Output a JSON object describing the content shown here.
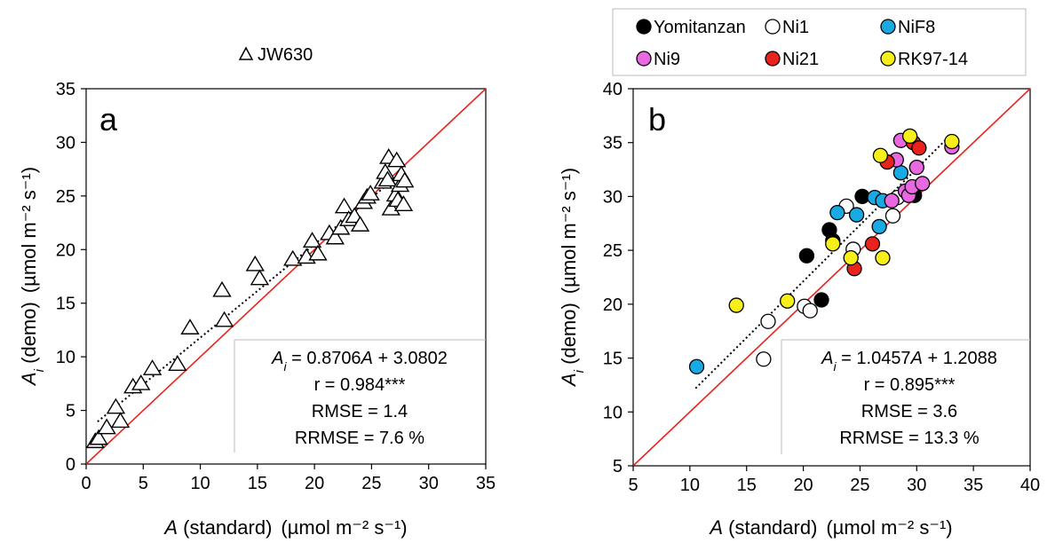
{
  "chart_data": [
    {
      "panel_letter": "a",
      "type": "scatter",
      "legend": [
        {
          "label": "JW630",
          "marker": "triangle",
          "fill": "#ffffff"
        }
      ],
      "xlabel": {
        "italic": "A",
        "text": " (standard)",
        "unit": "(µmol m⁻² s⁻¹)"
      },
      "ylabel": {
        "italic": "A",
        "sub": "i",
        "text": " (demo)",
        "unit": "(µmol m⁻² s⁻¹)"
      },
      "xlim": [
        0,
        35
      ],
      "ylim": [
        0,
        35
      ],
      "xticks": [
        "0",
        "5",
        "10",
        "15",
        "20",
        "25",
        "30",
        "35"
      ],
      "yticks": [
        "0",
        "5",
        "10",
        "15",
        "20",
        "25",
        "30",
        "35"
      ],
      "one_to_one_line": {
        "color": "#e8221c"
      },
      "regression": {
        "slope": 0.8706,
        "intercept": 3.0802,
        "x_range": [
          1,
          27.5
        ]
      },
      "stats": {
        "eq_pre": " = 0.8706",
        "eq_post": " + 3.0802",
        "r": "r = 0.984***",
        "rmse": "RMSE = 1.4",
        "rrmse": "RRMSE = 7.6 %"
      },
      "series": [
        {
          "name": "JW630",
          "marker": "triangle",
          "fill": "#ffffff",
          "stroke": "#000000",
          "points": [
            [
              0.8,
              2.1
            ],
            [
              1.1,
              2.4
            ],
            [
              1.8,
              3.4
            ],
            [
              2.6,
              5.3
            ],
            [
              3.0,
              4.0
            ],
            [
              4.1,
              7.2
            ],
            [
              4.8,
              7.5
            ],
            [
              5.8,
              8.9
            ],
            [
              8.0,
              9.3
            ],
            [
              9.1,
              12.7
            ],
            [
              11.9,
              16.2
            ],
            [
              12.1,
              13.4
            ],
            [
              14.8,
              18.6
            ],
            [
              15.2,
              17.3
            ],
            [
              18.1,
              19.1
            ],
            [
              19.3,
              19.3
            ],
            [
              19.8,
              20.8
            ],
            [
              20.3,
              19.6
            ],
            [
              21.3,
              21.5
            ],
            [
              21.8,
              21.1
            ],
            [
              22.3,
              22.0
            ],
            [
              22.6,
              24.0
            ],
            [
              23.0,
              22.8
            ],
            [
              23.5,
              23.1
            ],
            [
              24.0,
              22.3
            ],
            [
              24.3,
              24.4
            ],
            [
              24.6,
              24.9
            ],
            [
              24.9,
              25.2
            ],
            [
              26.0,
              26.3
            ],
            [
              26.2,
              27.2
            ],
            [
              26.4,
              26.5
            ],
            [
              26.5,
              28.6
            ],
            [
              26.7,
              23.8
            ],
            [
              27.1,
              25.1
            ],
            [
              27.2,
              28.3
            ],
            [
              27.3,
              24.6
            ],
            [
              27.5,
              26.0
            ],
            [
              27.8,
              24.2
            ],
            [
              27.6,
              27.0
            ],
            [
              27.9,
              26.4
            ]
          ]
        }
      ]
    },
    {
      "panel_letter": "b",
      "type": "scatter",
      "legend_placement": "top",
      "xlabel": {
        "italic": "A",
        "text": " (standard)",
        "unit": "(µmol m⁻² s⁻¹)"
      },
      "ylabel": {
        "italic": "A",
        "sub": "i",
        "text": " (demo)",
        "unit": "(µmol m⁻² s⁻¹)"
      },
      "xlim": [
        5,
        40
      ],
      "ylim": [
        5,
        40
      ],
      "xticks": [
        "5",
        "10",
        "15",
        "20",
        "25",
        "30",
        "35",
        "40"
      ],
      "yticks": [
        "5",
        "10",
        "15",
        "20",
        "25",
        "30",
        "35",
        "40"
      ],
      "one_to_one_line": {
        "color": "#e8221c"
      },
      "regression": {
        "slope": 1.0457,
        "intercept": 1.2088,
        "x_range": [
          10.5,
          33
        ]
      },
      "stats": {
        "eq_pre": " = 1.0457",
        "eq_post": " + 1.2088",
        "r": "r = 0.895***",
        "rmse": "RMSE = 3.6",
        "rrmse": "RRMSE = 13.3 %"
      },
      "series": [
        {
          "name": "Yomitanzan",
          "color": "#000000",
          "points": [
            [
              20.3,
              24.5
            ],
            [
              21.6,
              20.4
            ],
            [
              22.3,
              26.9
            ],
            [
              22.6,
              25.9
            ],
            [
              25.2,
              30.0
            ],
            [
              29.8,
              30.1
            ]
          ]
        },
        {
          "name": "Ni1",
          "color": "#ffffff",
          "points": [
            [
              16.5,
              14.9
            ],
            [
              16.9,
              18.4
            ],
            [
              20.1,
              19.8
            ],
            [
              20.6,
              19.4
            ],
            [
              23.8,
              29.1
            ],
            [
              24.4,
              25.1
            ],
            [
              27.9,
              28.2
            ],
            [
              28.3,
              29.9
            ]
          ]
        },
        {
          "name": "NiF8",
          "color": "#1aaae3",
          "points": [
            [
              10.6,
              14.2
            ],
            [
              23.0,
              28.5
            ],
            [
              24.7,
              28.3
            ],
            [
              26.3,
              29.9
            ],
            [
              26.7,
              27.2
            ],
            [
              27.0,
              29.6
            ],
            [
              28.6,
              32.2
            ]
          ]
        },
        {
          "name": "Ni9",
          "color": "#e868e0",
          "points": [
            [
              27.8,
              29.6
            ],
            [
              28.2,
              33.4
            ],
            [
              28.6,
              35.2
            ],
            [
              29.0,
              30.5
            ],
            [
              29.3,
              30.1
            ],
            [
              29.6,
              30.9
            ],
            [
              30.0,
              32.7
            ],
            [
              30.5,
              31.2
            ],
            [
              33.1,
              34.6
            ]
          ]
        },
        {
          "name": "Ni21",
          "color": "#e8221c",
          "points": [
            [
              24.5,
              23.3
            ],
            [
              26.1,
              25.6
            ],
            [
              27.4,
              33.2
            ],
            [
              29.7,
              35.0
            ],
            [
              30.2,
              34.5
            ]
          ]
        },
        {
          "name": "RK97-14",
          "color": "#f7ef19",
          "points": [
            [
              14.1,
              19.9
            ],
            [
              18.6,
              20.3
            ],
            [
              22.6,
              25.6
            ],
            [
              24.2,
              24.3
            ],
            [
              26.8,
              33.8
            ],
            [
              27.0,
              24.3
            ],
            [
              29.4,
              35.6
            ],
            [
              33.1,
              35.1
            ]
          ]
        }
      ]
    }
  ]
}
